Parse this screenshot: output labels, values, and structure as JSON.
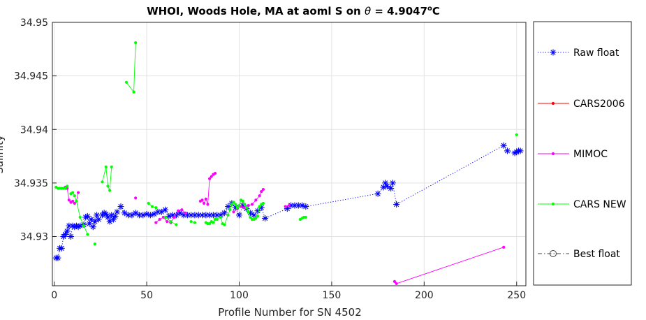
{
  "chart_data": {
    "type": "line",
    "title_parts": {
      "prefix": "WHOI, Woods Hole, MA at aoml S on ",
      "symbol": "θ",
      "value": " = 4.9047",
      "superscript": "o",
      "unit": "C"
    },
    "xlabel": "Profile Number for SN 4502",
    "ylabel": "Salinity",
    "xlim": [
      -1,
      255
    ],
    "ylim": [
      34.9254,
      34.95
    ],
    "x_ticks": [
      0,
      50,
      100,
      150,
      200,
      250
    ],
    "y_ticks": [
      34.93,
      34.935,
      34.94,
      34.945,
      34.95
    ],
    "y_tick_labels": [
      "34.93",
      "34.935",
      "34.94",
      "34.945",
      "34.95"
    ],
    "grid": true,
    "legend_position": "outside-right",
    "series": [
      {
        "name": "Raw float",
        "color": "#0000ff",
        "line_style": "dotted",
        "marker": "asterisk",
        "points": [
          [
            1,
            34.928
          ],
          [
            2,
            34.928
          ],
          [
            3,
            34.9289
          ],
          [
            4,
            34.9289
          ],
          [
            5,
            34.93
          ],
          [
            6,
            34.9302
          ],
          [
            7,
            34.9305
          ],
          [
            8,
            34.931
          ],
          [
            9,
            34.93
          ],
          [
            10,
            34.931
          ],
          [
            11,
            34.9309
          ],
          [
            12,
            34.931
          ],
          [
            13,
            34.9309
          ],
          [
            14,
            34.931
          ],
          [
            16,
            34.9311
          ],
          [
            17,
            34.9318
          ],
          [
            18,
            34.9319
          ],
          [
            19,
            34.9312
          ],
          [
            20,
            34.9316
          ],
          [
            21,
            34.9309
          ],
          [
            22,
            34.9314
          ],
          [
            23,
            34.932
          ],
          [
            24,
            34.9316
          ],
          [
            26,
            34.932
          ],
          [
            27,
            34.9322
          ],
          [
            28,
            34.9321
          ],
          [
            29,
            34.9318
          ],
          [
            30,
            34.9314
          ],
          [
            31,
            34.932
          ],
          [
            32,
            34.9316
          ],
          [
            33,
            34.9319
          ],
          [
            34,
            34.9323
          ],
          [
            36,
            34.9328
          ],
          [
            38,
            34.9322
          ],
          [
            40,
            34.932
          ],
          [
            42,
            34.932
          ],
          [
            44,
            34.9322
          ],
          [
            46,
            34.932
          ],
          [
            48,
            34.932
          ],
          [
            50,
            34.9321
          ],
          [
            52,
            34.932
          ],
          [
            54,
            34.9321
          ],
          [
            56,
            34.9323
          ],
          [
            58,
            34.9323
          ],
          [
            60,
            34.9325
          ],
          [
            62,
            34.9319
          ],
          [
            64,
            34.932
          ],
          [
            66,
            34.932
          ],
          [
            68,
            34.9322
          ],
          [
            70,
            34.932
          ],
          [
            72,
            34.932
          ],
          [
            74,
            34.932
          ],
          [
            76,
            34.932
          ],
          [
            78,
            34.932
          ],
          [
            80,
            34.932
          ],
          [
            82,
            34.932
          ],
          [
            84,
            34.932
          ],
          [
            86,
            34.932
          ],
          [
            88,
            34.932
          ],
          [
            90,
            34.932
          ],
          [
            92,
            34.9322
          ],
          [
            94,
            34.9328
          ],
          [
            96,
            34.9331
          ],
          [
            98,
            34.9327
          ],
          [
            100,
            34.932
          ],
          [
            102,
            34.9329
          ],
          [
            104,
            34.9326
          ],
          [
            106,
            34.9322
          ],
          [
            108,
            34.932
          ],
          [
            110,
            34.9324
          ],
          [
            112,
            34.9327
          ],
          [
            114,
            34.9317
          ],
          [
            126,
            34.9326
          ],
          [
            128,
            34.9329
          ],
          [
            130,
            34.9329
          ],
          [
            132,
            34.9329
          ],
          [
            134,
            34.9329
          ],
          [
            136,
            34.9328
          ],
          [
            175,
            34.934
          ],
          [
            178,
            34.9346
          ],
          [
            179,
            34.935
          ],
          [
            180,
            34.9347
          ],
          [
            182,
            34.9345
          ],
          [
            183,
            34.935
          ],
          [
            185,
            34.933
          ],
          [
            243,
            34.9385
          ],
          [
            245,
            34.938
          ],
          [
            249,
            34.9378
          ],
          [
            250,
            34.9379
          ],
          [
            251,
            34.938
          ],
          [
            252,
            34.938
          ]
        ]
      },
      {
        "name": "CARS2006",
        "color": "#ff0000",
        "line_style": "solid",
        "marker": "dot",
        "points": []
      },
      {
        "name": "MIMOC",
        "color": "#ff00ff",
        "line_style": "solid",
        "marker": "dot",
        "segments": [
          [
            [
              6,
              34.9346
            ],
            [
              7,
              34.9345
            ],
            [
              8,
              34.9334
            ],
            [
              9,
              34.9332
            ],
            [
              10,
              34.9333
            ],
            [
              11,
              34.9331
            ],
            [
              12,
              34.9333
            ],
            [
              13,
              34.9341
            ]
          ],
          [
            [
              44,
              34.9336
            ]
          ],
          [
            [
              55,
              34.9313
            ],
            [
              57,
              34.9316
            ],
            [
              59,
              34.9318
            ],
            [
              61,
              34.9314
            ],
            [
              63,
              34.9313
            ],
            [
              65,
              34.9318
            ],
            [
              67,
              34.9324
            ],
            [
              69,
              34.9325
            ],
            [
              71,
              34.9322
            ]
          ],
          [
            [
              79,
              34.9333
            ],
            [
              80,
              34.9334
            ],
            [
              81,
              34.9331
            ],
            [
              82,
              34.9335
            ],
            [
              83,
              34.933
            ],
            [
              84,
              34.9354
            ],
            [
              85,
              34.9356
            ],
            [
              86,
              34.9358
            ],
            [
              87,
              34.9359
            ]
          ],
          [
            [
              97,
              34.9323
            ],
            [
              99,
              34.9326
            ],
            [
              101,
              34.9328
            ],
            [
              103,
              34.9327
            ],
            [
              105,
              34.9329
            ],
            [
              107,
              34.933
            ],
            [
              109,
              34.9334
            ],
            [
              111,
              34.9338
            ],
            [
              112,
              34.9342
            ],
            [
              113,
              34.9344
            ]
          ],
          [
            [
              125,
              34.9328
            ],
            [
              127,
              34.9329
            ]
          ],
          [
            [
              184,
              34.9258
            ],
            [
              185,
              34.9256
            ],
            [
              243,
              34.929
            ]
          ]
        ]
      },
      {
        "name": "CARS NEW",
        "color": "#00ff00",
        "line_style": "solid",
        "marker": "dot",
        "segments": [
          [
            [
              1,
              34.9346
            ],
            [
              2,
              34.9345
            ],
            [
              3,
              34.9345
            ],
            [
              4,
              34.9345
            ],
            [
              5,
              34.9345
            ],
            [
              6,
              34.9345
            ],
            [
              7,
              34.9347
            ]
          ],
          [
            [
              9,
              34.934
            ],
            [
              10,
              34.9341
            ],
            [
              11,
              34.9338
            ],
            [
              12,
              34.9333
            ],
            [
              14,
              34.9318
            ],
            [
              16,
              34.931
            ],
            [
              18,
              34.9302
            ]
          ],
          [
            [
              22,
              34.9293
            ]
          ],
          [
            [
              26,
              34.9351
            ],
            [
              28,
              34.9365
            ],
            [
              29,
              34.9347
            ],
            [
              30,
              34.9343
            ],
            [
              31,
              34.9365
            ]
          ],
          [
            [
              39,
              34.9444
            ],
            [
              43,
              34.9435
            ],
            [
              44,
              34.9481
            ]
          ],
          [
            [
              51,
              34.9331
            ],
            [
              53,
              34.9328
            ],
            [
              55,
              34.9327
            ]
          ],
          [
            [
              60,
              34.9318
            ],
            [
              63,
              34.9314
            ],
            [
              66,
              34.9311
            ]
          ],
          [
            [
              74,
              34.9314
            ],
            [
              76,
              34.9313
            ]
          ],
          [
            [
              82,
              34.9313
            ],
            [
              83,
              34.9312
            ],
            [
              84,
              34.9312
            ],
            [
              85,
              34.9314
            ],
            [
              86,
              34.9313
            ],
            [
              87,
              34.9316
            ],
            [
              88,
              34.9316
            ],
            [
              90,
              34.9318
            ],
            [
              91,
              34.9312
            ],
            [
              92,
              34.9311
            ],
            [
              94,
              34.932
            ],
            [
              95,
              34.9325
            ],
            [
              96,
              34.933
            ],
            [
              97,
              34.9332
            ],
            [
              98,
              34.933
            ],
            [
              99,
              34.9327
            ],
            [
              100,
              34.9329
            ],
            [
              101,
              34.9334
            ],
            [
              102,
              34.9333
            ],
            [
              103,
              34.933
            ],
            [
              104,
              34.9327
            ],
            [
              105,
              34.9323
            ],
            [
              106,
              34.9318
            ],
            [
              107,
              34.9316
            ],
            [
              108,
              34.9316
            ],
            [
              109,
              34.9317
            ],
            [
              110,
              34.9319
            ],
            [
              111,
              34.9328
            ],
            [
              112,
              34.933
            ],
            [
              113,
              34.9331
            ]
          ],
          [
            [
              133,
              34.9316
            ],
            [
              134,
              34.9317
            ],
            [
              135,
              34.9318
            ],
            [
              136,
              34.9318
            ]
          ],
          [
            [
              250,
              34.9395
            ]
          ]
        ]
      },
      {
        "name": "Best float",
        "color": "#404040",
        "line_style": "dash-dot",
        "marker": "circle",
        "points": []
      }
    ]
  }
}
